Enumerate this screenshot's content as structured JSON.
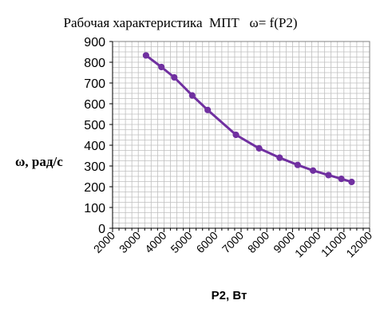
{
  "chart_data": {
    "type": "line",
    "title": "Рабочая характеристика  МПТ   ω= f(P2)",
    "xlabel": "P2, Вт",
    "ylabel": "ω, рад/с",
    "xlim": [
      2000,
      12000
    ],
    "ylim": [
      0,
      900
    ],
    "x_ticks": [
      "2000",
      "3000",
      "4000",
      "5000",
      "6000",
      "7000",
      "8000",
      "9000",
      "10000",
      "11000",
      "12000"
    ],
    "y_ticks": [
      "0",
      "100",
      "200",
      "300",
      "400",
      "500",
      "600",
      "700",
      "800",
      "900"
    ],
    "grid": true,
    "legend": "none",
    "series": [
      {
        "color": "#7030a0",
        "x": [
          3300,
          3900,
          4400,
          5100,
          5700,
          6800,
          7700,
          8500,
          9200,
          9800,
          10400,
          10900,
          11300
        ],
        "y": [
          833,
          777,
          727,
          640,
          570,
          450,
          385,
          340,
          305,
          278,
          256,
          238,
          223
        ]
      }
    ]
  }
}
